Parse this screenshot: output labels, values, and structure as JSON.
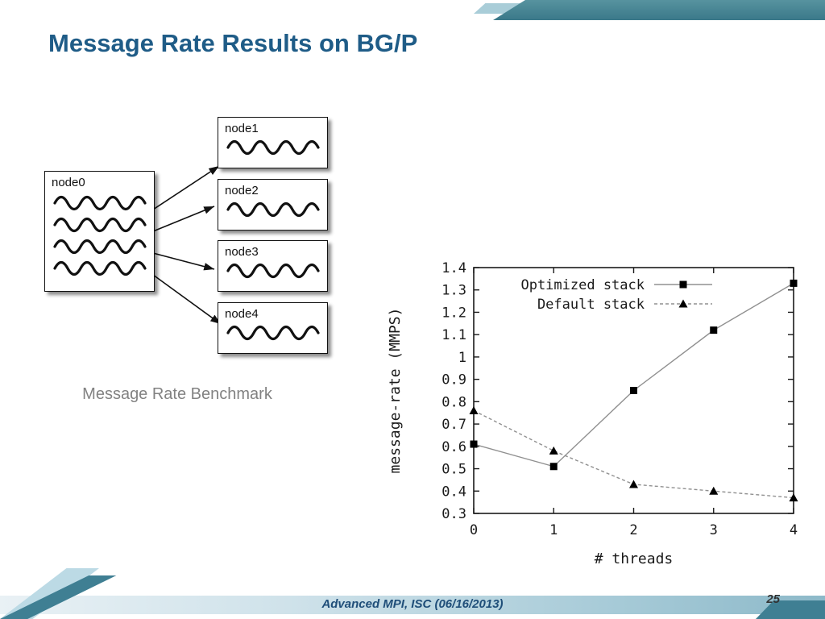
{
  "slide": {
    "title": "Message Rate Results on BG/P",
    "caption": "Message Rate Benchmark",
    "footer": "Advanced MPI, ISC (06/16/2013)",
    "page_number": "25"
  },
  "diagram": {
    "main_node": "node0",
    "peer_nodes": [
      "node1",
      "node2",
      "node3",
      "node4"
    ],
    "connections": [
      [
        "node0",
        "node1"
      ],
      [
        "node0",
        "node2"
      ],
      [
        "node0",
        "node3"
      ],
      [
        "node0",
        "node4"
      ]
    ]
  },
  "chart_data": {
    "type": "line",
    "x": [
      0,
      1,
      2,
      3,
      4
    ],
    "series": [
      {
        "name": "Optimized stack",
        "marker": "square",
        "line_style": "solid",
        "values": [
          0.61,
          0.51,
          0.85,
          1.12,
          1.33
        ]
      },
      {
        "name": "Default stack",
        "marker": "triangle",
        "line_style": "dashed",
        "values": [
          0.76,
          0.58,
          0.43,
          0.4,
          0.37
        ]
      }
    ],
    "xlabel": "# threads",
    "ylabel": "message-rate (MMPS)",
    "xlim": [
      0,
      4
    ],
    "ylim": [
      0.3,
      1.4
    ],
    "ytick_step": 0.1,
    "xticks": [
      0,
      1,
      2,
      3,
      4
    ],
    "legend_position": "top-left-inside",
    "grid": false
  },
  "colors": {
    "title_blue": "#1f5c87",
    "accent_teal": "#3f7f93",
    "accent_light_blue": "#bcdae5",
    "marker_black": "#000000",
    "series_line_gray": "#909090"
  }
}
